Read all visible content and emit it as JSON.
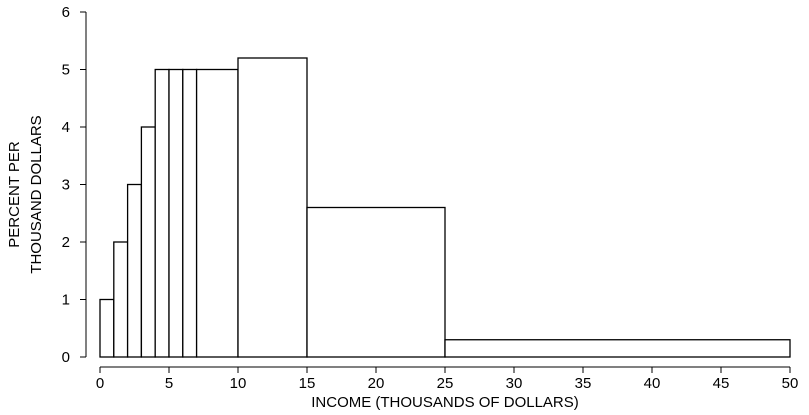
{
  "chart_data": {
    "type": "bar",
    "subtype": "histogram",
    "title": "",
    "xlabel": "INCOME (THOUSANDS OF DOLLARS)",
    "ylabel_lines": [
      "PERCENT PER",
      "THOUSAND DOLLARS"
    ],
    "xlim": [
      0,
      50
    ],
    "ylim": [
      0,
      6
    ],
    "xticks": [
      0,
      5,
      10,
      15,
      20,
      25,
      30,
      35,
      40,
      45,
      50
    ],
    "yticks": [
      0,
      1,
      2,
      3,
      4,
      5,
      6
    ],
    "grid": false,
    "bins": [
      {
        "x0": 0,
        "x1": 1,
        "value": 1.0
      },
      {
        "x0": 1,
        "x1": 2,
        "value": 2.0
      },
      {
        "x0": 2,
        "x1": 3,
        "value": 3.0
      },
      {
        "x0": 3,
        "x1": 4,
        "value": 4.0
      },
      {
        "x0": 4,
        "x1": 5,
        "value": 5.0
      },
      {
        "x0": 5,
        "x1": 6,
        "value": 5.0
      },
      {
        "x0": 6,
        "x1": 7,
        "value": 5.0
      },
      {
        "x0": 7,
        "x1": 10,
        "value": 5.0
      },
      {
        "x0": 10,
        "x1": 15,
        "value": 5.2
      },
      {
        "x0": 15,
        "x1": 25,
        "value": 2.6
      },
      {
        "x0": 25,
        "x1": 50,
        "value": 0.3
      }
    ]
  }
}
